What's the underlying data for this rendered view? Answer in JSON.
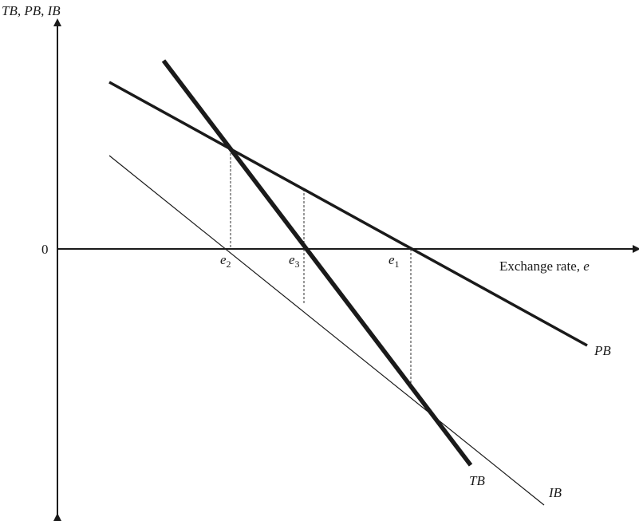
{
  "diagram": {
    "y_axis_label": {
      "parts": [
        {
          "text": "TB",
          "italic": true
        },
        {
          "text": ", ",
          "italic": false
        },
        {
          "text": "PB",
          "italic": true
        },
        {
          "text": ", ",
          "italic": false
        },
        {
          "text": "IB",
          "italic": true
        }
      ]
    },
    "x_axis_label": {
      "text": "Exchange rate, ",
      "var": "e"
    },
    "origin_label": "0",
    "x_ticks": [
      {
        "id": "e2",
        "base": "e",
        "sub": "2"
      },
      {
        "id": "e3",
        "base": "e",
        "sub": "3"
      },
      {
        "id": "e1",
        "base": "e",
        "sub": "1"
      }
    ],
    "curves": [
      {
        "id": "PB",
        "label": "PB",
        "weight": "medium"
      },
      {
        "id": "TB",
        "label": "TB",
        "weight": "heavy"
      },
      {
        "id": "IB",
        "label": "IB",
        "weight": "light"
      }
    ],
    "colors": {
      "line": "#1a1a1a",
      "guide": "#333333",
      "background": "#ffffff"
    }
  }
}
